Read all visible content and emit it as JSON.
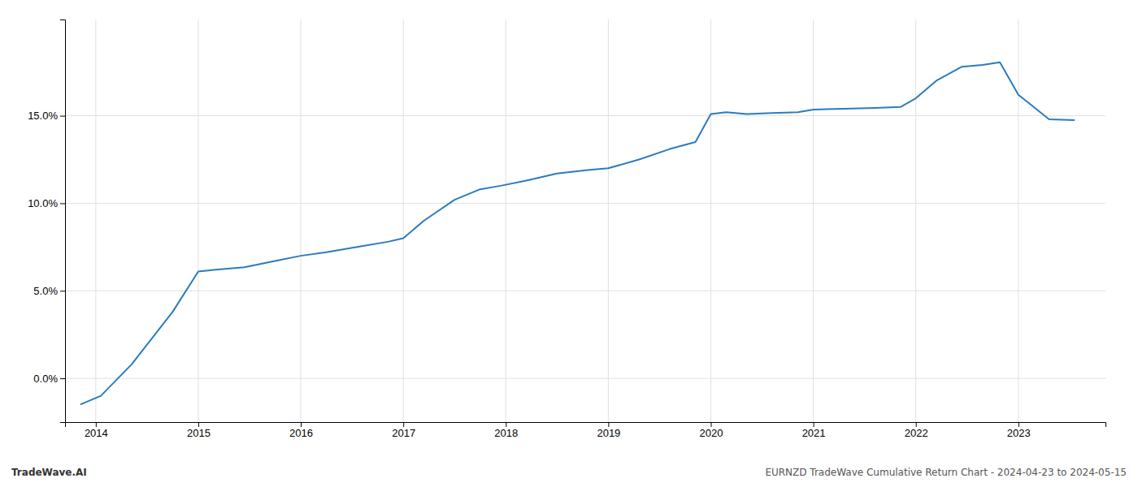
{
  "chart_data": {
    "type": "line",
    "title": "EURNZD TradeWave Cumulative Return Chart - 2024-04-23 to 2024-05-15",
    "annotations": [
      "TradeWave.AI"
    ],
    "x": [
      2013.85,
      2014.05,
      2014.35,
      2014.75,
      2015.0,
      2015.15,
      2015.45,
      2015.75,
      2016.0,
      2016.25,
      2016.55,
      2016.85,
      2017.0,
      2017.2,
      2017.5,
      2017.75,
      2017.95,
      2018.2,
      2018.5,
      2018.8,
      2019.0,
      2019.3,
      2019.6,
      2019.85,
      2020.0,
      2020.15,
      2020.35,
      2020.6,
      2020.85,
      2021.0,
      2021.3,
      2021.6,
      2021.85,
      2022.0,
      2022.2,
      2022.45,
      2022.65,
      2022.82,
      2023.0,
      2023.3,
      2023.55
    ],
    "values": [
      -1.5,
      -1.0,
      0.8,
      3.8,
      6.1,
      6.2,
      6.35,
      6.7,
      7.0,
      7.2,
      7.5,
      7.8,
      8.0,
      9.0,
      10.2,
      10.8,
      11.0,
      11.3,
      11.7,
      11.9,
      12.0,
      12.5,
      13.1,
      13.5,
      15.1,
      15.2,
      15.1,
      15.15,
      15.2,
      15.35,
      15.4,
      15.45,
      15.5,
      16.0,
      17.0,
      17.8,
      17.9,
      18.05,
      16.2,
      14.8,
      14.75
    ],
    "color": "#2b7bbf",
    "xlim": [
      2013.7,
      2023.85
    ],
    "ylim": [
      -2.5,
      20.5
    ],
    "xticks": [
      2014,
      2015,
      2016,
      2017,
      2018,
      2019,
      2020,
      2021,
      2022,
      2023
    ],
    "yticks": [
      {
        "value": 0.0,
        "label": "0.0%"
      },
      {
        "value": 5.0,
        "label": "5.0%"
      },
      {
        "value": 10.0,
        "label": "10.0%"
      },
      {
        "value": 15.0,
        "label": "15.0%"
      }
    ],
    "grid": true
  }
}
